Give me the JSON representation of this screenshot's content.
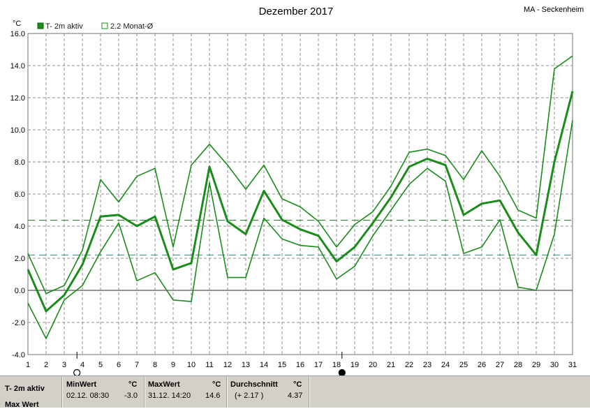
{
  "header": {
    "title": "Dezember 2017",
    "station": "MA - Seckenheim",
    "unit": "°C"
  },
  "legend": {
    "item1": "T- 2m aktiv",
    "item2": "2.2 Monat-Ø"
  },
  "colors": {
    "series": "#1a8c1a",
    "avg_line": "#1a8c1a",
    "ref_line": "#2e8b8b",
    "grid": "#8c8c8c",
    "panel": "#d4d0c8"
  },
  "chart_data": {
    "type": "line",
    "title": "Dezember 2017",
    "ylabel": "°C",
    "ylim": [
      -4.0,
      16.0
    ],
    "yticks": [
      "16.0",
      "14.0",
      "12.0",
      "10.0",
      "8.0",
      "6.0",
      "4.0",
      "2.0",
      "0.0",
      "-2.0",
      "-4.0"
    ],
    "x": [
      1,
      2,
      3,
      4,
      5,
      6,
      7,
      8,
      9,
      10,
      11,
      12,
      13,
      14,
      15,
      16,
      17,
      18,
      19,
      20,
      21,
      22,
      23,
      24,
      25,
      26,
      27,
      28,
      29,
      30,
      31
    ],
    "series": [
      {
        "role": "max",
        "values": [
          2.3,
          -0.2,
          0.3,
          2.5,
          6.9,
          5.5,
          7.1,
          7.6,
          2.7,
          7.8,
          9.1,
          7.8,
          6.3,
          7.8,
          5.7,
          5.2,
          4.3,
          2.7,
          4.1,
          4.9,
          6.5,
          8.6,
          8.8,
          8.4,
          6.9,
          8.7,
          7.1,
          5.0,
          4.5,
          13.8,
          14.6
        ]
      },
      {
        "role": "mean",
        "values": [
          1.3,
          -1.3,
          -0.3,
          1.6,
          4.6,
          4.7,
          4.0,
          4.6,
          1.3,
          1.7,
          7.7,
          4.3,
          3.5,
          6.2,
          4.4,
          3.8,
          3.4,
          1.8,
          2.7,
          4.2,
          5.8,
          7.7,
          8.2,
          7.8,
          4.7,
          5.4,
          5.6,
          3.6,
          2.2,
          8.0,
          12.4
        ]
      },
      {
        "role": "min",
        "values": [
          -0.8,
          -3.0,
          -0.6,
          0.3,
          2.4,
          4.2,
          0.6,
          1.1,
          -0.6,
          -0.7,
          6.7,
          0.8,
          0.8,
          4.5,
          3.2,
          2.8,
          2.7,
          0.7,
          1.5,
          3.4,
          5.0,
          6.6,
          7.6,
          6.8,
          2.3,
          2.7,
          4.4,
          0.2,
          0.0,
          3.5,
          10.6
        ]
      }
    ],
    "reference_lines": [
      {
        "value": 4.37,
        "style": "dashed"
      },
      {
        "value": 2.2,
        "style": "dashed"
      }
    ],
    "moon_phases": [
      {
        "day": 3.7,
        "phase": "full"
      },
      {
        "day": 18.3,
        "phase": "new"
      }
    ],
    "grid": true
  },
  "stats": {
    "series_label": "T- 2m aktiv",
    "series_label_2": "Max Wert",
    "min": {
      "label": "MinWert",
      "unit": "°C",
      "time": "02.12.  08:30",
      "value": "-3.0"
    },
    "max": {
      "label": "MaxWert",
      "unit": "°C",
      "time": "31.12.  14:20",
      "value": "14.6"
    },
    "avg": {
      "label": "Durchschnitt",
      "unit": "°C",
      "delta": "(+ 2.17 )",
      "value": "4.37"
    }
  }
}
